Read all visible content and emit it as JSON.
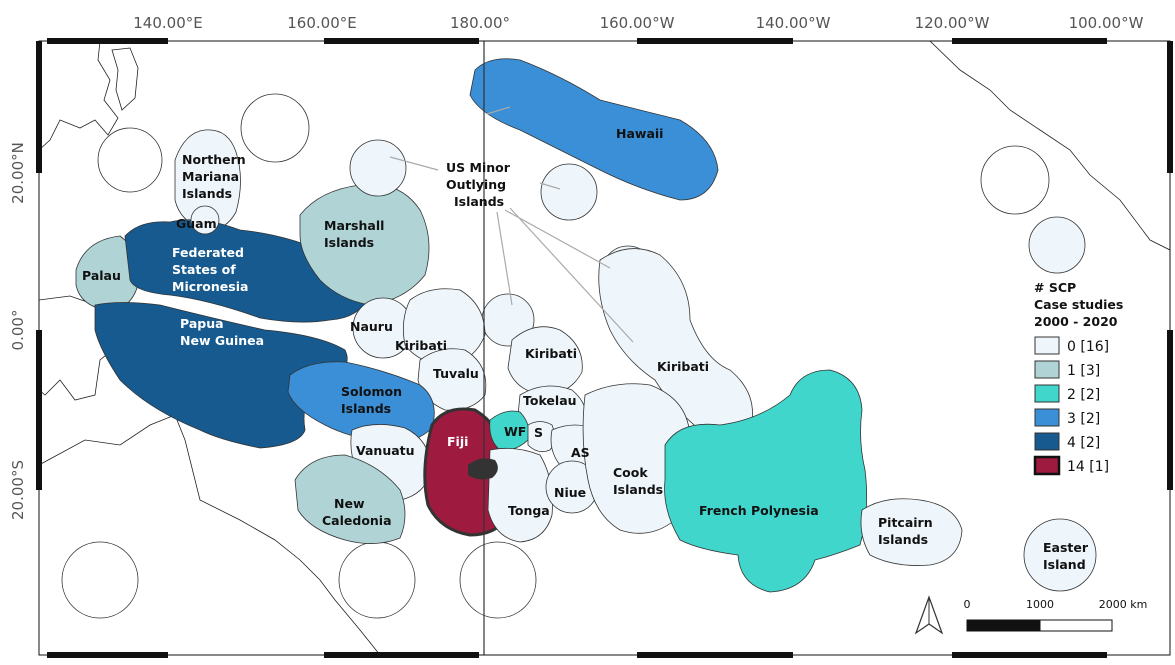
{
  "axes": {
    "top": [
      "140.00°E",
      "160.00°E",
      "180.00°",
      "160.00°W",
      "140.00°W",
      "120.00°W",
      "100.00°W"
    ],
    "left": [
      "20.00°N",
      "0.00°",
      "20.00°S"
    ]
  },
  "labels": {
    "northern_mariana": [
      "Northern",
      "Mariana",
      "Islands"
    ],
    "guam": "Guam",
    "palau": "Palau",
    "fsm": [
      "Federated",
      "States of",
      "Micronesia"
    ],
    "png": [
      "Papua",
      "New Guinea"
    ],
    "marshall": [
      "Marshall",
      "Islands"
    ],
    "nauru": "Nauru",
    "kiribati_west": "Kiribati",
    "kiribati_central": "Kiribati",
    "kiribati_east": "Kiribati",
    "tuvalu": "Tuvalu",
    "solomon": [
      "Solomon",
      "Islands"
    ],
    "vanuatu": "Vanuatu",
    "new_caledonia": [
      "New",
      "Caledonia"
    ],
    "fiji": "Fiji",
    "wf": "WF",
    "samoa": "S",
    "as": "AS",
    "tokelau": "Tokelau",
    "tonga": "Tonga",
    "niue": "Niue",
    "cook": [
      "Cook",
      "Islands"
    ],
    "french_polynesia": "French Polynesia",
    "pitcairn": [
      "Pitcairn",
      "Islands"
    ],
    "easter": [
      "Easter",
      "Island"
    ],
    "hawaii": "Hawaii",
    "us_minor": [
      "US Minor",
      "Outlying",
      "Islands"
    ]
  },
  "legend": {
    "title": [
      "# SCP",
      "Case studies",
      "2000 - 2020"
    ],
    "classes": [
      {
        "label": "0 [16]",
        "color": "#eef6fb"
      },
      {
        "label": "1 [3]",
        "color": "#b0d4d6"
      },
      {
        "label": "2 [2]",
        "color": "#40d6cc"
      },
      {
        "label": "3 [2]",
        "color": "#3b8fd6"
      },
      {
        "label": "4 [2]",
        "color": "#165a8f"
      },
      {
        "label": "14 [1]",
        "color": "#9e1b3f"
      }
    ]
  },
  "scale_bar": {
    "ticks": [
      "0",
      "1000",
      "2000 km"
    ]
  },
  "north_arrow": "north-arrow-icon"
}
